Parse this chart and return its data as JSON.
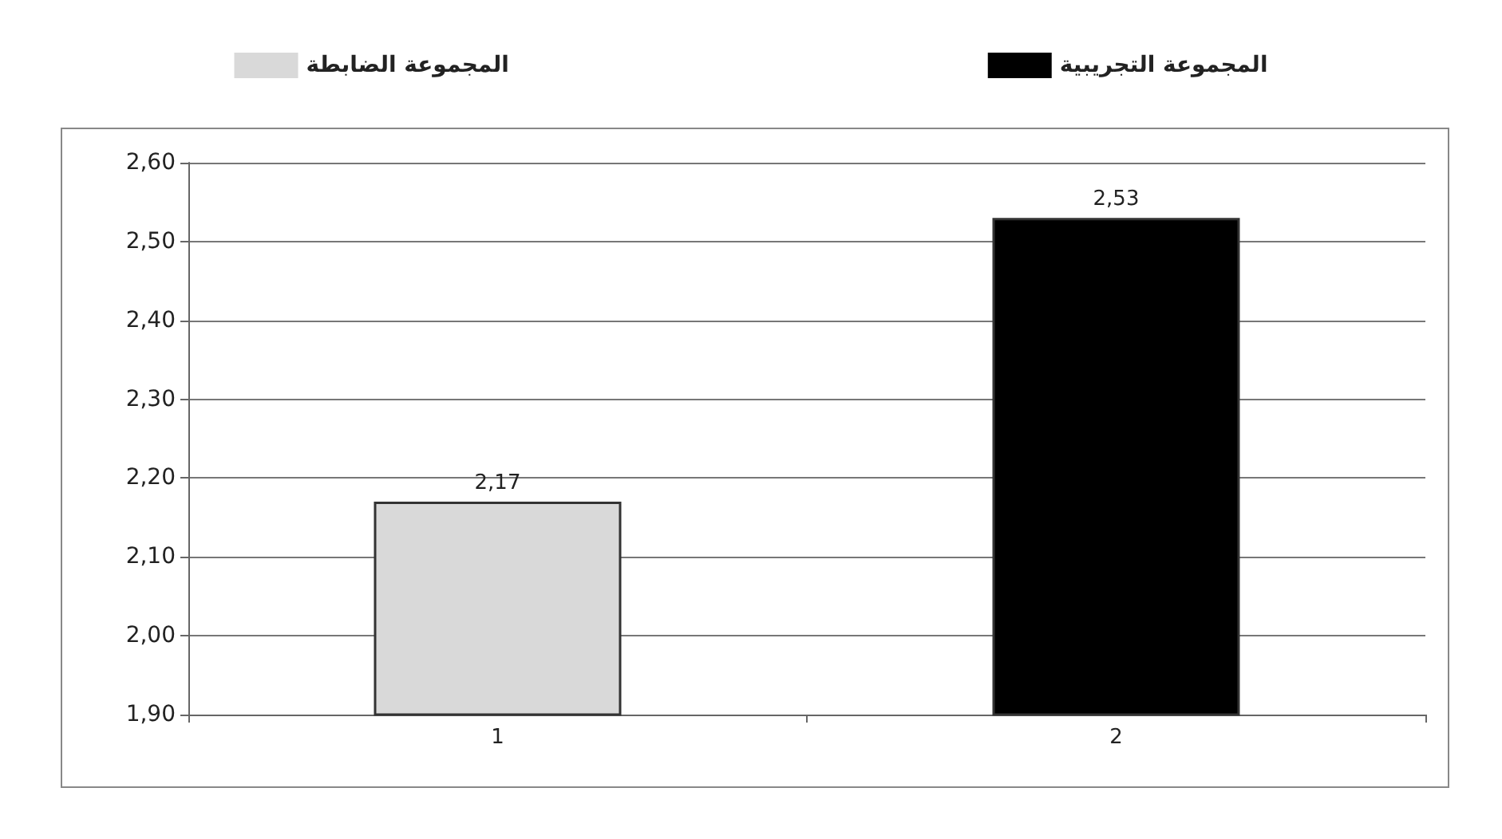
{
  "chart_data": {
    "type": "bar",
    "categories": [
      "1",
      "2"
    ],
    "series": [
      {
        "name": "المجموعة الضابطة",
        "color": "#d9d9d9",
        "values": [
          2.17,
          null
        ],
        "value_labels": [
          "2,17",
          null
        ]
      },
      {
        "name": "المجموعة التجريبية",
        "color": "#000000",
        "values": [
          null,
          2.53
        ],
        "value_labels": [
          null,
          "2,53"
        ]
      }
    ],
    "ylim": [
      1.9,
      2.6
    ],
    "yticks": [
      {
        "value": 1.9,
        "label": "1,90"
      },
      {
        "value": 2.0,
        "label": "2,00"
      },
      {
        "value": 2.1,
        "label": "2,10"
      },
      {
        "value": 2.2,
        "label": "2,20"
      },
      {
        "value": 2.3,
        "label": "2,30"
      },
      {
        "value": 2.4,
        "label": "2,40"
      },
      {
        "value": 2.5,
        "label": "2,50"
      },
      {
        "value": 2.6,
        "label": "2,60"
      }
    ],
    "grid": "y",
    "legend": "top"
  }
}
